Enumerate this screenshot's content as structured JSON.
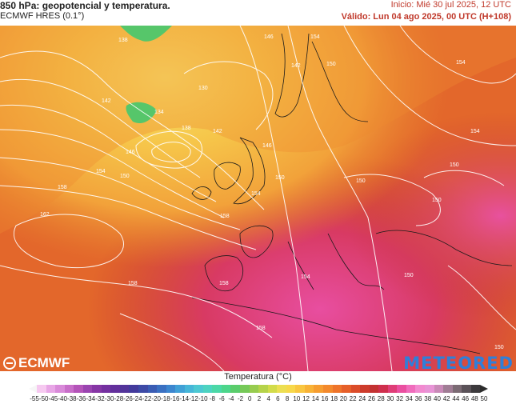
{
  "header": {
    "title": "850 hPa: geopotencial y temperatura.",
    "model": "ECMWF HRES (0.1°)",
    "init": "Inicio: Mié 30 jul 2025, 12 UTC",
    "valid": "Válido: Lun 04 ago 2025, 00 UTC (H+108)"
  },
  "logos": {
    "left": "ECMWF",
    "right": "METEORED"
  },
  "contour_labels": [
    "138",
    "142",
    "146",
    "150",
    "154",
    "158",
    "162",
    "130",
    "134",
    "138",
    "142",
    "146",
    "150",
    "154",
    "158",
    "146",
    "150",
    "154",
    "150",
    "142",
    "154",
    "154",
    "150",
    "150",
    "158",
    "154",
    "150",
    "158",
    "158",
    "150"
  ],
  "legend": {
    "title": "Temperatura (°C)",
    "ticks": [
      "-55",
      "-50",
      "-45",
      "-40",
      "-38",
      "-36",
      "-34",
      "-32",
      "-30",
      "-28",
      "-26",
      "-24",
      "-22",
      "-20",
      "-18",
      "-16",
      "-14",
      "-12",
      "-10",
      "-8",
      "-6",
      "-4",
      "-2",
      "0",
      "2",
      "4",
      "6",
      "8",
      "10",
      "12",
      "14",
      "16",
      "18",
      "20",
      "22",
      "24",
      "26",
      "28",
      "30",
      "32",
      "34",
      "36",
      "38",
      "40",
      "42",
      "44",
      "46",
      "48",
      "50"
    ],
    "colors": [
      "#f6c9f0",
      "#e8a6e6",
      "#d98ad9",
      "#c86ec9",
      "#b454b9",
      "#9a44b0",
      "#8636a5",
      "#7430a0",
      "#63309c",
      "#52349a",
      "#433a9c",
      "#3d4aa6",
      "#3a5cb4",
      "#3a70c2",
      "#3c86cf",
      "#40a0d6",
      "#46b6d8",
      "#4cc8d2",
      "#4dd3c1",
      "#4bd8a7",
      "#4cd68b",
      "#5acd6c",
      "#76c958",
      "#97cc4f",
      "#b5d34a",
      "#d2dc4a",
      "#ecdf52",
      "#f7d84a",
      "#f9c640",
      "#f8b236",
      "#f69d30",
      "#f3892c",
      "#ee742a",
      "#e65f29",
      "#db4c29",
      "#cd3c2c",
      "#c33232",
      "#cf2f4d",
      "#df3d77",
      "#ea4fa0",
      "#f06cbc",
      "#f28ad0",
      "#e894d6",
      "#c98ab8",
      "#a07d95",
      "#7b6b74",
      "#5a5258",
      "#3c3a3d"
    ]
  }
}
